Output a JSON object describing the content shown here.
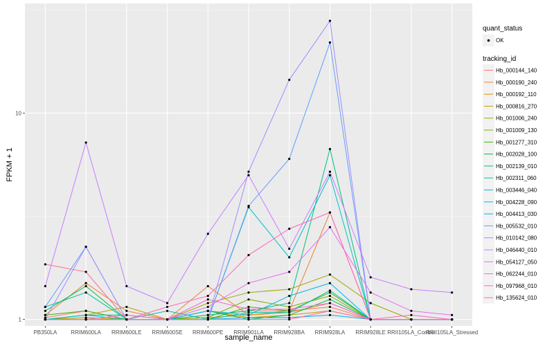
{
  "chart_data": {
    "type": "line",
    "xlabel": "sample_name",
    "ylabel": "FPKM + 1",
    "y_scale": "log10",
    "ylim": [
      0.93,
      34
    ],
    "y_ticks": [
      1,
      10
    ],
    "y_tick_labels": [
      "1",
      "10"
    ],
    "categories": [
      "PB350LA",
      "RRIM600LA",
      "RRIM600LE",
      "RRIM600SE",
      "RRIM600PE",
      "RRIM901LA",
      "RRIM928BA",
      "RRIM928LA",
      "RRIM928LE",
      "RRII105LA_Control",
      "RRII105LA_Stressed"
    ],
    "legend_quant": {
      "title": "quant_status",
      "label": "OK"
    },
    "legend_title": "tracking_id",
    "series": [
      {
        "name": "Hb_000144_140",
        "color": "#F8766D",
        "values": [
          1.02,
          1.1,
          1.0,
          1.0,
          1.05,
          1.1,
          1.1,
          1.15,
          1.0,
          1.0,
          1.0
        ]
      },
      {
        "name": "Hb_000190_240",
        "color": "#EA8331",
        "values": [
          1.05,
          1.5,
          1.1,
          1.0,
          1.45,
          1.05,
          1.1,
          3.3,
          1.0,
          1.0,
          1.0
        ]
      },
      {
        "name": "Hb_000192_110",
        "color": "#D89000",
        "values": [
          1.0,
          1.02,
          1.0,
          1.0,
          1.02,
          1.05,
          1.08,
          1.2,
          1.0,
          1.0,
          1.0
        ]
      },
      {
        "name": "Hb_000816_270",
        "color": "#C09B00",
        "values": [
          1.0,
          1.05,
          1.15,
          1.0,
          1.1,
          1.02,
          1.05,
          1.1,
          1.0,
          1.0,
          1.0
        ]
      },
      {
        "name": "Hb_001006_240",
        "color": "#A3A500",
        "values": [
          1.0,
          1.02,
          1.0,
          1.0,
          1.2,
          1.35,
          1.4,
          1.65,
          1.2,
          1.0,
          1.0
        ]
      },
      {
        "name": "Hb_001009_130",
        "color": "#7CAE00",
        "values": [
          1.0,
          1.0,
          1.0,
          1.0,
          1.02,
          1.25,
          1.15,
          1.3,
          1.0,
          1.0,
          1.0
        ]
      },
      {
        "name": "Hb_001277_310",
        "color": "#39B600",
        "values": [
          1.05,
          1.1,
          1.0,
          1.0,
          1.0,
          1.15,
          1.1,
          1.35,
          1.0,
          1.0,
          1.0
        ]
      },
      {
        "name": "Hb_002028_100",
        "color": "#00BB4E",
        "values": [
          1.1,
          1.45,
          1.0,
          1.0,
          1.1,
          1.0,
          1.05,
          1.25,
          1.0,
          1.0,
          1.0
        ]
      },
      {
        "name": "Hb_002139_010",
        "color": "#00BF7D",
        "values": [
          1.0,
          1.05,
          1.05,
          1.0,
          1.05,
          1.1,
          1.2,
          6.7,
          1.0,
          1.0,
          1.0
        ]
      },
      {
        "name": "Hb_002311_060",
        "color": "#00C1A3",
        "values": [
          1.15,
          1.35,
          1.0,
          1.1,
          1.0,
          1.08,
          1.08,
          1.38,
          1.0,
          1.0,
          1.0
        ]
      },
      {
        "name": "Hb_003446_040",
        "color": "#00BFC4",
        "values": [
          1.0,
          1.05,
          1.0,
          1.0,
          1.0,
          3.5,
          2.0,
          5.0,
          1.0,
          1.0,
          1.0
        ]
      },
      {
        "name": "Hb_004228_090",
        "color": "#00B8E5",
        "values": [
          1.0,
          1.0,
          1.0,
          1.0,
          1.1,
          1.05,
          1.3,
          1.5,
          1.0,
          1.0,
          1.0
        ]
      },
      {
        "name": "Hb_004413_030",
        "color": "#00A9FF",
        "values": [
          1.0,
          1.0,
          1.0,
          1.0,
          1.0,
          1.02,
          1.02,
          1.05,
          1.0,
          1.0,
          1.0
        ]
      },
      {
        "name": "Hb_005532_010",
        "color": "#619CFF",
        "values": [
          1.15,
          2.25,
          1.0,
          1.0,
          1.0,
          3.55,
          6.0,
          22.0,
          1.0,
          1.0,
          1.0
        ]
      },
      {
        "name": "Hb_010142_080",
        "color": "#9F8CFF",
        "values": [
          1.0,
          2.25,
          1.0,
          1.0,
          1.0,
          5.2,
          14.5,
          28.0,
          1.0,
          1.0,
          1.0
        ]
      },
      {
        "name": "Hb_046440_010",
        "color": "#C77CFF",
        "values": [
          1.45,
          7.2,
          1.45,
          1.2,
          2.6,
          5.0,
          2.2,
          5.2,
          1.6,
          1.4,
          1.35
        ]
      },
      {
        "name": "Hb_054127_050",
        "color": "#E76BF3",
        "values": [
          1.0,
          1.0,
          1.0,
          1.0,
          1.15,
          1.5,
          1.7,
          2.8,
          1.35,
          1.1,
          1.05
        ]
      },
      {
        "name": "Hb_062244_010",
        "color": "#F962DD",
        "values": [
          1.0,
          1.0,
          1.05,
          1.0,
          1.25,
          1.12,
          1.12,
          1.2,
          1.0,
          1.0,
          1.0
        ]
      },
      {
        "name": "Hb_097968_010",
        "color": "#FF62BC",
        "values": [
          1.0,
          1.0,
          1.0,
          1.15,
          1.3,
          2.05,
          2.75,
          3.3,
          1.0,
          1.05,
          1.0
        ]
      },
      {
        "name": "Hb_135624_010",
        "color": "#FF6C91",
        "values": [
          1.85,
          1.7,
          1.0,
          1.0,
          1.0,
          1.0,
          1.0,
          1.1,
          1.0,
          1.0,
          1.0
        ]
      }
    ]
  }
}
